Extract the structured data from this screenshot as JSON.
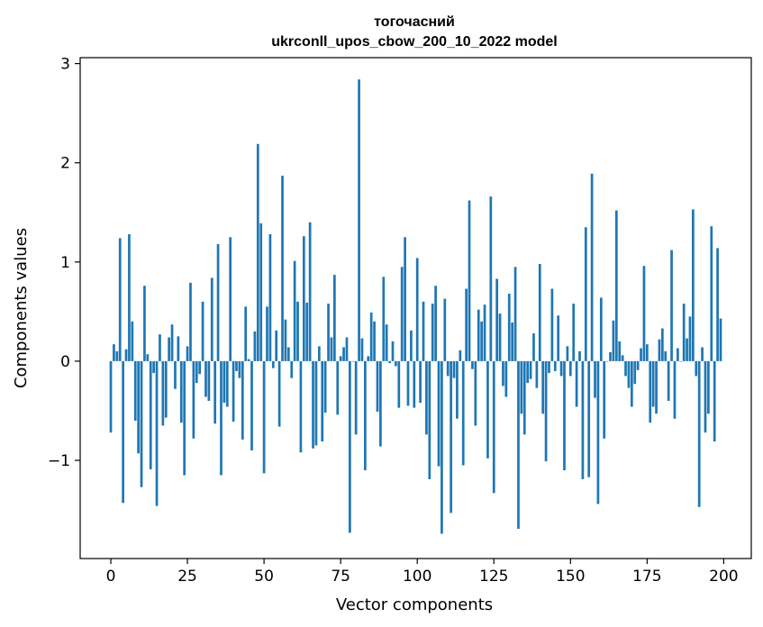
{
  "chart_data": {
    "type": "bar",
    "title": "тогочасний",
    "subtitle": "ukrconll_upos_cbow_200_10_2022 model",
    "xlabel": "Vector components",
    "ylabel": "Components values",
    "xlim": [
      -10,
      209
    ],
    "ylim": [
      -1.99,
      3.06
    ],
    "xticks": [
      0,
      25,
      50,
      75,
      100,
      125,
      150,
      175,
      200
    ],
    "xtick_labels": [
      "0",
      "25",
      "50",
      "75",
      "100",
      "125",
      "150",
      "175",
      "200"
    ],
    "yticks": [
      -1,
      0,
      1,
      2,
      3
    ],
    "ytick_labels": [
      "−1",
      "0",
      "1",
      "2",
      "3"
    ],
    "grid": false,
    "bar_color": "#1f77b4",
    "values": [
      -0.72,
      0.17,
      0.1,
      1.24,
      -1.43,
      0.12,
      1.28,
      0.4,
      -0.6,
      -0.93,
      -1.27,
      0.76,
      0.07,
      -1.09,
      -0.12,
      -1.46,
      0.27,
      -0.65,
      -0.57,
      0.24,
      0.37,
      -0.28,
      0.25,
      -0.62,
      -1.15,
      0.15,
      0.79,
      -0.78,
      -0.22,
      -0.13,
      0.6,
      -0.36,
      -0.4,
      0.84,
      -0.63,
      1.18,
      -1.15,
      -0.42,
      -0.46,
      1.25,
      -0.61,
      -0.1,
      -0.17,
      -0.79,
      0.55,
      0.02,
      -0.9,
      0.3,
      2.19,
      1.39,
      -1.13,
      0.55,
      1.28,
      -0.07,
      0.31,
      -0.66,
      1.87,
      0.42,
      0.14,
      -0.17,
      1.01,
      0.6,
      -0.92,
      1.26,
      0.59,
      1.4,
      -0.88,
      -0.85,
      0.15,
      -0.81,
      -0.52,
      0.58,
      0.24,
      0.87,
      -0.54,
      0.05,
      0.14,
      0.24,
      -1.73,
      0.0,
      -0.74,
      2.84,
      0.23,
      -1.1,
      0.05,
      0.49,
      0.4,
      -0.51,
      -0.86,
      0.85,
      0.37,
      -0.02,
      0.2,
      -0.05,
      -0.47,
      0.95,
      1.25,
      -0.45,
      0.31,
      -0.47,
      1.04,
      -0.42,
      0.6,
      -0.74,
      -1.19,
      0.58,
      0.76,
      -1.06,
      -1.74,
      0.63,
      -0.15,
      -1.53,
      -0.17,
      -0.58,
      0.11,
      -1.05,
      0.73,
      1.62,
      -0.08,
      -0.65,
      0.52,
      0.4,
      0.57,
      -0.98,
      1.66,
      -1.33,
      0.83,
      0.48,
      -0.25,
      -0.36,
      0.68,
      0.39,
      0.95,
      -1.69,
      -0.53,
      -0.74,
      -0.22,
      -0.18,
      0.28,
      -0.27,
      0.98,
      -0.53,
      -1.01,
      -0.12,
      0.73,
      -0.1,
      0.46,
      -0.15,
      -1.1,
      0.15,
      -0.15,
      0.58,
      -0.46,
      0.1,
      -1.19,
      1.35,
      -1.17,
      1.89,
      -0.37,
      -1.44,
      0.64,
      -0.78,
      0.0,
      0.09,
      0.41,
      1.52,
      0.2,
      0.06,
      -0.15,
      -0.27,
      -0.46,
      -0.23,
      -0.09,
      0.13,
      0.96,
      0.17,
      -0.62,
      -0.46,
      -0.53,
      0.22,
      0.33,
      0.1,
      -0.4,
      1.12,
      -0.58,
      0.13,
      0.0,
      0.58,
      0.23,
      0.45,
      1.53,
      -0.15,
      -1.47,
      0.14,
      -0.72,
      -0.53,
      1.36,
      -0.81,
      1.14,
      0.43
    ]
  }
}
